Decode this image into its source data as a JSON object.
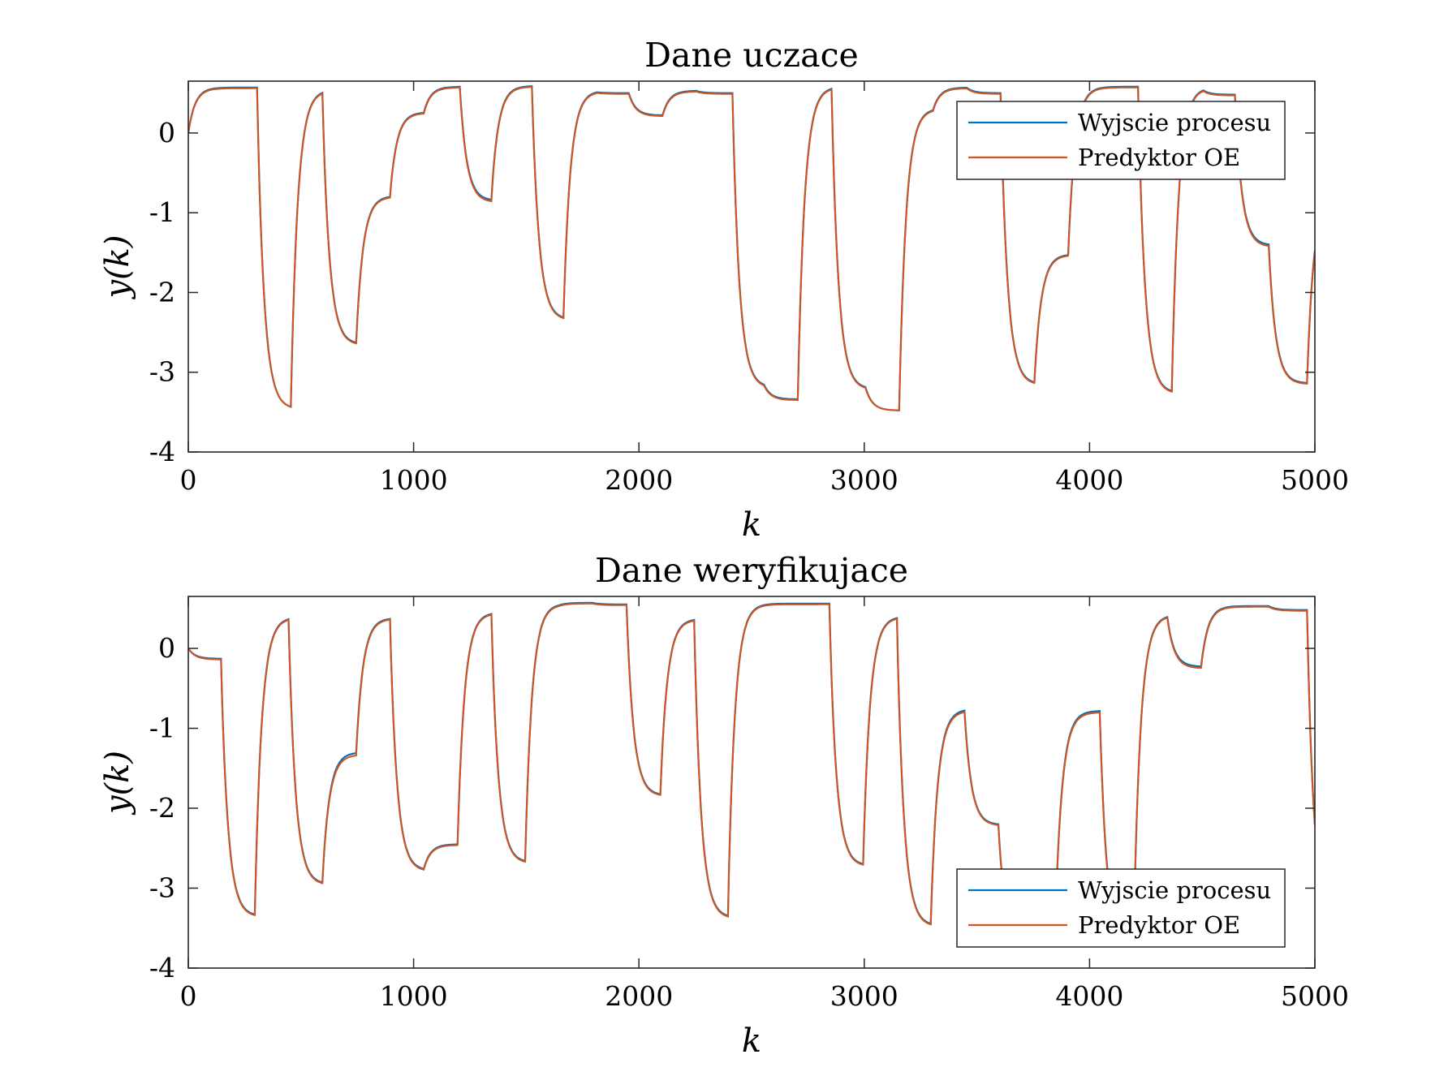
{
  "colors": {
    "process": "#0072BD",
    "predictor": "#D95319"
  },
  "chart_data": [
    {
      "type": "line",
      "title": "Dane uczace",
      "xlabel": "k",
      "ylabel": "y(k)",
      "xlim": [
        0,
        5000
      ],
      "ylim": [
        -4,
        0.65
      ],
      "xticks": [
        0,
        1000,
        2000,
        3000,
        4000,
        5000
      ],
      "yticks": [
        0,
        -1,
        -2,
        -3,
        -4
      ],
      "legend_position": "top-right",
      "series": [
        {
          "name": "Wyjscie procesu",
          "color": "#0072BD",
          "levels": [
            [
              0,
              0.57
            ],
            [
              310,
              -3.46
            ],
            [
              460,
              0.54
            ],
            [
              600,
              -2.65
            ],
            [
              750,
              -0.79
            ],
            [
              900,
              0.26
            ],
            [
              1050,
              0.58
            ],
            [
              1200,
              0.59
            ],
            [
              1210,
              -0.85
            ],
            [
              1350,
              0.59
            ],
            [
              1520,
              0.59
            ],
            [
              1530,
              -2.34
            ],
            [
              1670,
              0.53
            ],
            [
              1820,
              0.5
            ],
            [
              1960,
              0.22
            ],
            [
              2110,
              0.53
            ],
            [
              2260,
              0.5
            ],
            [
              2420,
              -3.19
            ],
            [
              2560,
              -3.34
            ],
            [
              2710,
              0.58
            ],
            [
              2860,
              -3.21
            ],
            [
              3010,
              -3.48
            ],
            [
              3160,
              0.31
            ],
            [
              3310,
              0.57
            ],
            [
              3460,
              0.5
            ],
            [
              3610,
              -3.15
            ],
            [
              3760,
              -1.52
            ],
            [
              3910,
              0.58
            ],
            [
              4060,
              0.58
            ],
            [
              4220,
              -3.26
            ],
            [
              4370,
              0.57
            ],
            [
              4510,
              0.48
            ],
            [
              4650,
              -1.41
            ],
            [
              4800,
              -3.14
            ],
            [
              4970,
              -0.72
            ]
          ]
        },
        {
          "name": "Predyktor OE",
          "color": "#D95319",
          "levels": [
            [
              0,
              0.56
            ],
            [
              310,
              -3.46
            ],
            [
              460,
              0.53
            ],
            [
              600,
              -2.66
            ],
            [
              750,
              -0.8
            ],
            [
              900,
              0.25
            ],
            [
              1050,
              0.57
            ],
            [
              1200,
              0.58
            ],
            [
              1210,
              -0.87
            ],
            [
              1350,
              0.58
            ],
            [
              1520,
              0.58
            ],
            [
              1530,
              -2.35
            ],
            [
              1670,
              0.52
            ],
            [
              1820,
              0.49
            ],
            [
              1960,
              0.21
            ],
            [
              2110,
              0.52
            ],
            [
              2260,
              0.49
            ],
            [
              2420,
              -3.2
            ],
            [
              2560,
              -3.35
            ],
            [
              2710,
              0.57
            ],
            [
              2860,
              -3.22
            ],
            [
              3010,
              -3.48
            ],
            [
              3160,
              0.3
            ],
            [
              3310,
              0.56
            ],
            [
              3460,
              0.49
            ],
            [
              3610,
              -3.16
            ],
            [
              3760,
              -1.53
            ],
            [
              3910,
              0.57
            ],
            [
              4060,
              0.57
            ],
            [
              4220,
              -3.27
            ],
            [
              4370,
              0.56
            ],
            [
              4510,
              0.47
            ],
            [
              4650,
              -1.43
            ],
            [
              4800,
              -3.15
            ],
            [
              4970,
              -0.74
            ]
          ]
        }
      ]
    },
    {
      "type": "line",
      "title": "Dane weryfikujace",
      "xlabel": "k",
      "ylabel": "y(k)",
      "xlim": [
        0,
        5000
      ],
      "ylim": [
        -4,
        0.65
      ],
      "xticks": [
        0,
        1000,
        2000,
        3000,
        4000,
        5000
      ],
      "yticks": [
        0,
        -1,
        -2,
        -3,
        -4
      ],
      "legend_position": "bottom-right",
      "series": [
        {
          "name": "Wyjscie procesu",
          "color": "#0072BD",
          "levels": [
            [
              0,
              -0.13
            ],
            [
              150,
              -3.35
            ],
            [
              300,
              0.39
            ],
            [
              450,
              -2.95
            ],
            [
              600,
              -1.3
            ],
            [
              750,
              0.38
            ],
            [
              900,
              -2.78
            ],
            [
              1050,
              -2.45
            ],
            [
              1200,
              0.45
            ],
            [
              1350,
              -2.68
            ],
            [
              1500,
              0.56
            ],
            [
              1650,
              0.57
            ],
            [
              1800,
              0.55
            ],
            [
              1950,
              -1.84
            ],
            [
              2100,
              0.37
            ],
            [
              2250,
              -3.37
            ],
            [
              2400,
              0.56
            ],
            [
              2550,
              0.56
            ],
            [
              2700,
              0.56
            ],
            [
              2850,
              -2.72
            ],
            [
              3000,
              0.4
            ],
            [
              3150,
              -3.47
            ],
            [
              3300,
              -0.76
            ],
            [
              3450,
              -2.21
            ],
            [
              3600,
              -3.7
            ],
            [
              3850,
              -0.78
            ],
            [
              4050,
              -3.7
            ],
            [
              4200,
              0.42
            ],
            [
              4350,
              -0.23
            ],
            [
              4500,
              0.53
            ],
            [
              4800,
              0.48
            ],
            [
              4970,
              -3.42
            ]
          ]
        },
        {
          "name": "Predyktor OE",
          "color": "#D95319",
          "levels": [
            [
              0,
              -0.14
            ],
            [
              150,
              -3.36
            ],
            [
              300,
              0.38
            ],
            [
              450,
              -2.96
            ],
            [
              600,
              -1.33
            ],
            [
              750,
              0.37
            ],
            [
              900,
              -2.79
            ],
            [
              1050,
              -2.46
            ],
            [
              1200,
              0.44
            ],
            [
              1350,
              -2.69
            ],
            [
              1500,
              0.55
            ],
            [
              1650,
              0.56
            ],
            [
              1800,
              0.54
            ],
            [
              1950,
              -1.85
            ],
            [
              2100,
              0.36
            ],
            [
              2250,
              -3.38
            ],
            [
              2400,
              0.55
            ],
            [
              2550,
              0.55
            ],
            [
              2700,
              0.55
            ],
            [
              2850,
              -2.73
            ],
            [
              3000,
              0.39
            ],
            [
              3150,
              -3.48
            ],
            [
              3300,
              -0.78
            ],
            [
              3450,
              -2.22
            ],
            [
              3600,
              -3.71
            ],
            [
              3850,
              -0.8
            ],
            [
              4050,
              -3.71
            ],
            [
              4200,
              0.41
            ],
            [
              4350,
              -0.25
            ],
            [
              4500,
              0.52
            ],
            [
              4800,
              0.47
            ],
            [
              4970,
              -3.43
            ]
          ]
        }
      ]
    }
  ]
}
